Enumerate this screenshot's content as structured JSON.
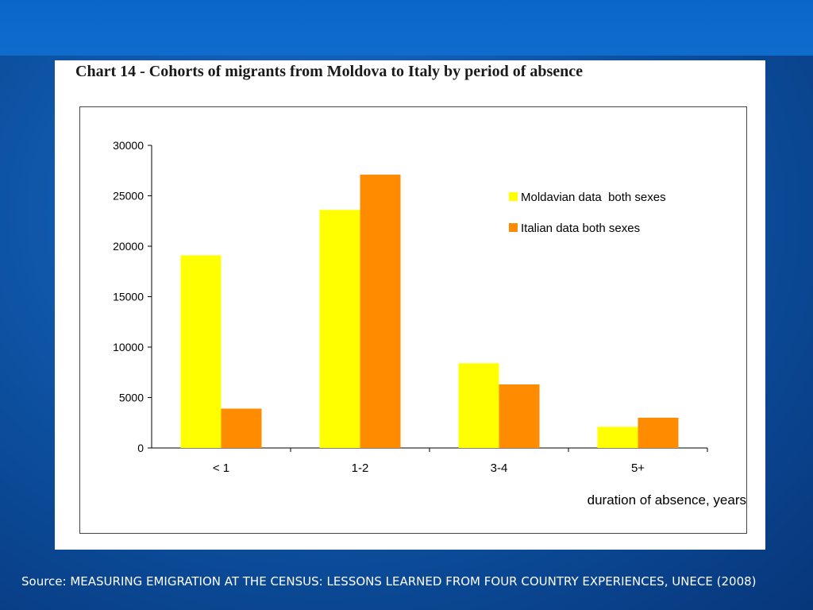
{
  "source_text": "Source: MEASURING EMIGRATION AT THE CENSUS: LESSONS LEARNED FROM FOUR COUNTRY EXPERIENCES, UNECE (2008)",
  "colors": {
    "background": "#0c4f9e",
    "moldavian": "#ffff00",
    "italian": "#ff8c00"
  },
  "chart_data": {
    "type": "bar",
    "title": "Chart 14 - Cohorts of migrants from Moldova to Italy by period of absence",
    "xlabel": "duration of absence, years",
    "ylabel": "",
    "categories": [
      "< 1",
      "1-2",
      "3-4",
      "5+"
    ],
    "series": [
      {
        "name": "Moldavian data  both sexes",
        "color": "#ffff00",
        "values": [
          19100,
          23600,
          8400,
          2100
        ]
      },
      {
        "name": "Italian data both sexes",
        "color": "#ff8c00",
        "values": [
          3900,
          27100,
          6300,
          3000
        ]
      }
    ],
    "ylim": [
      0,
      30000
    ],
    "yticks": [
      "0",
      "5000",
      "10000",
      "15000",
      "20000",
      "25000",
      "30000"
    ],
    "grid": false,
    "legend_position": "top-right"
  }
}
